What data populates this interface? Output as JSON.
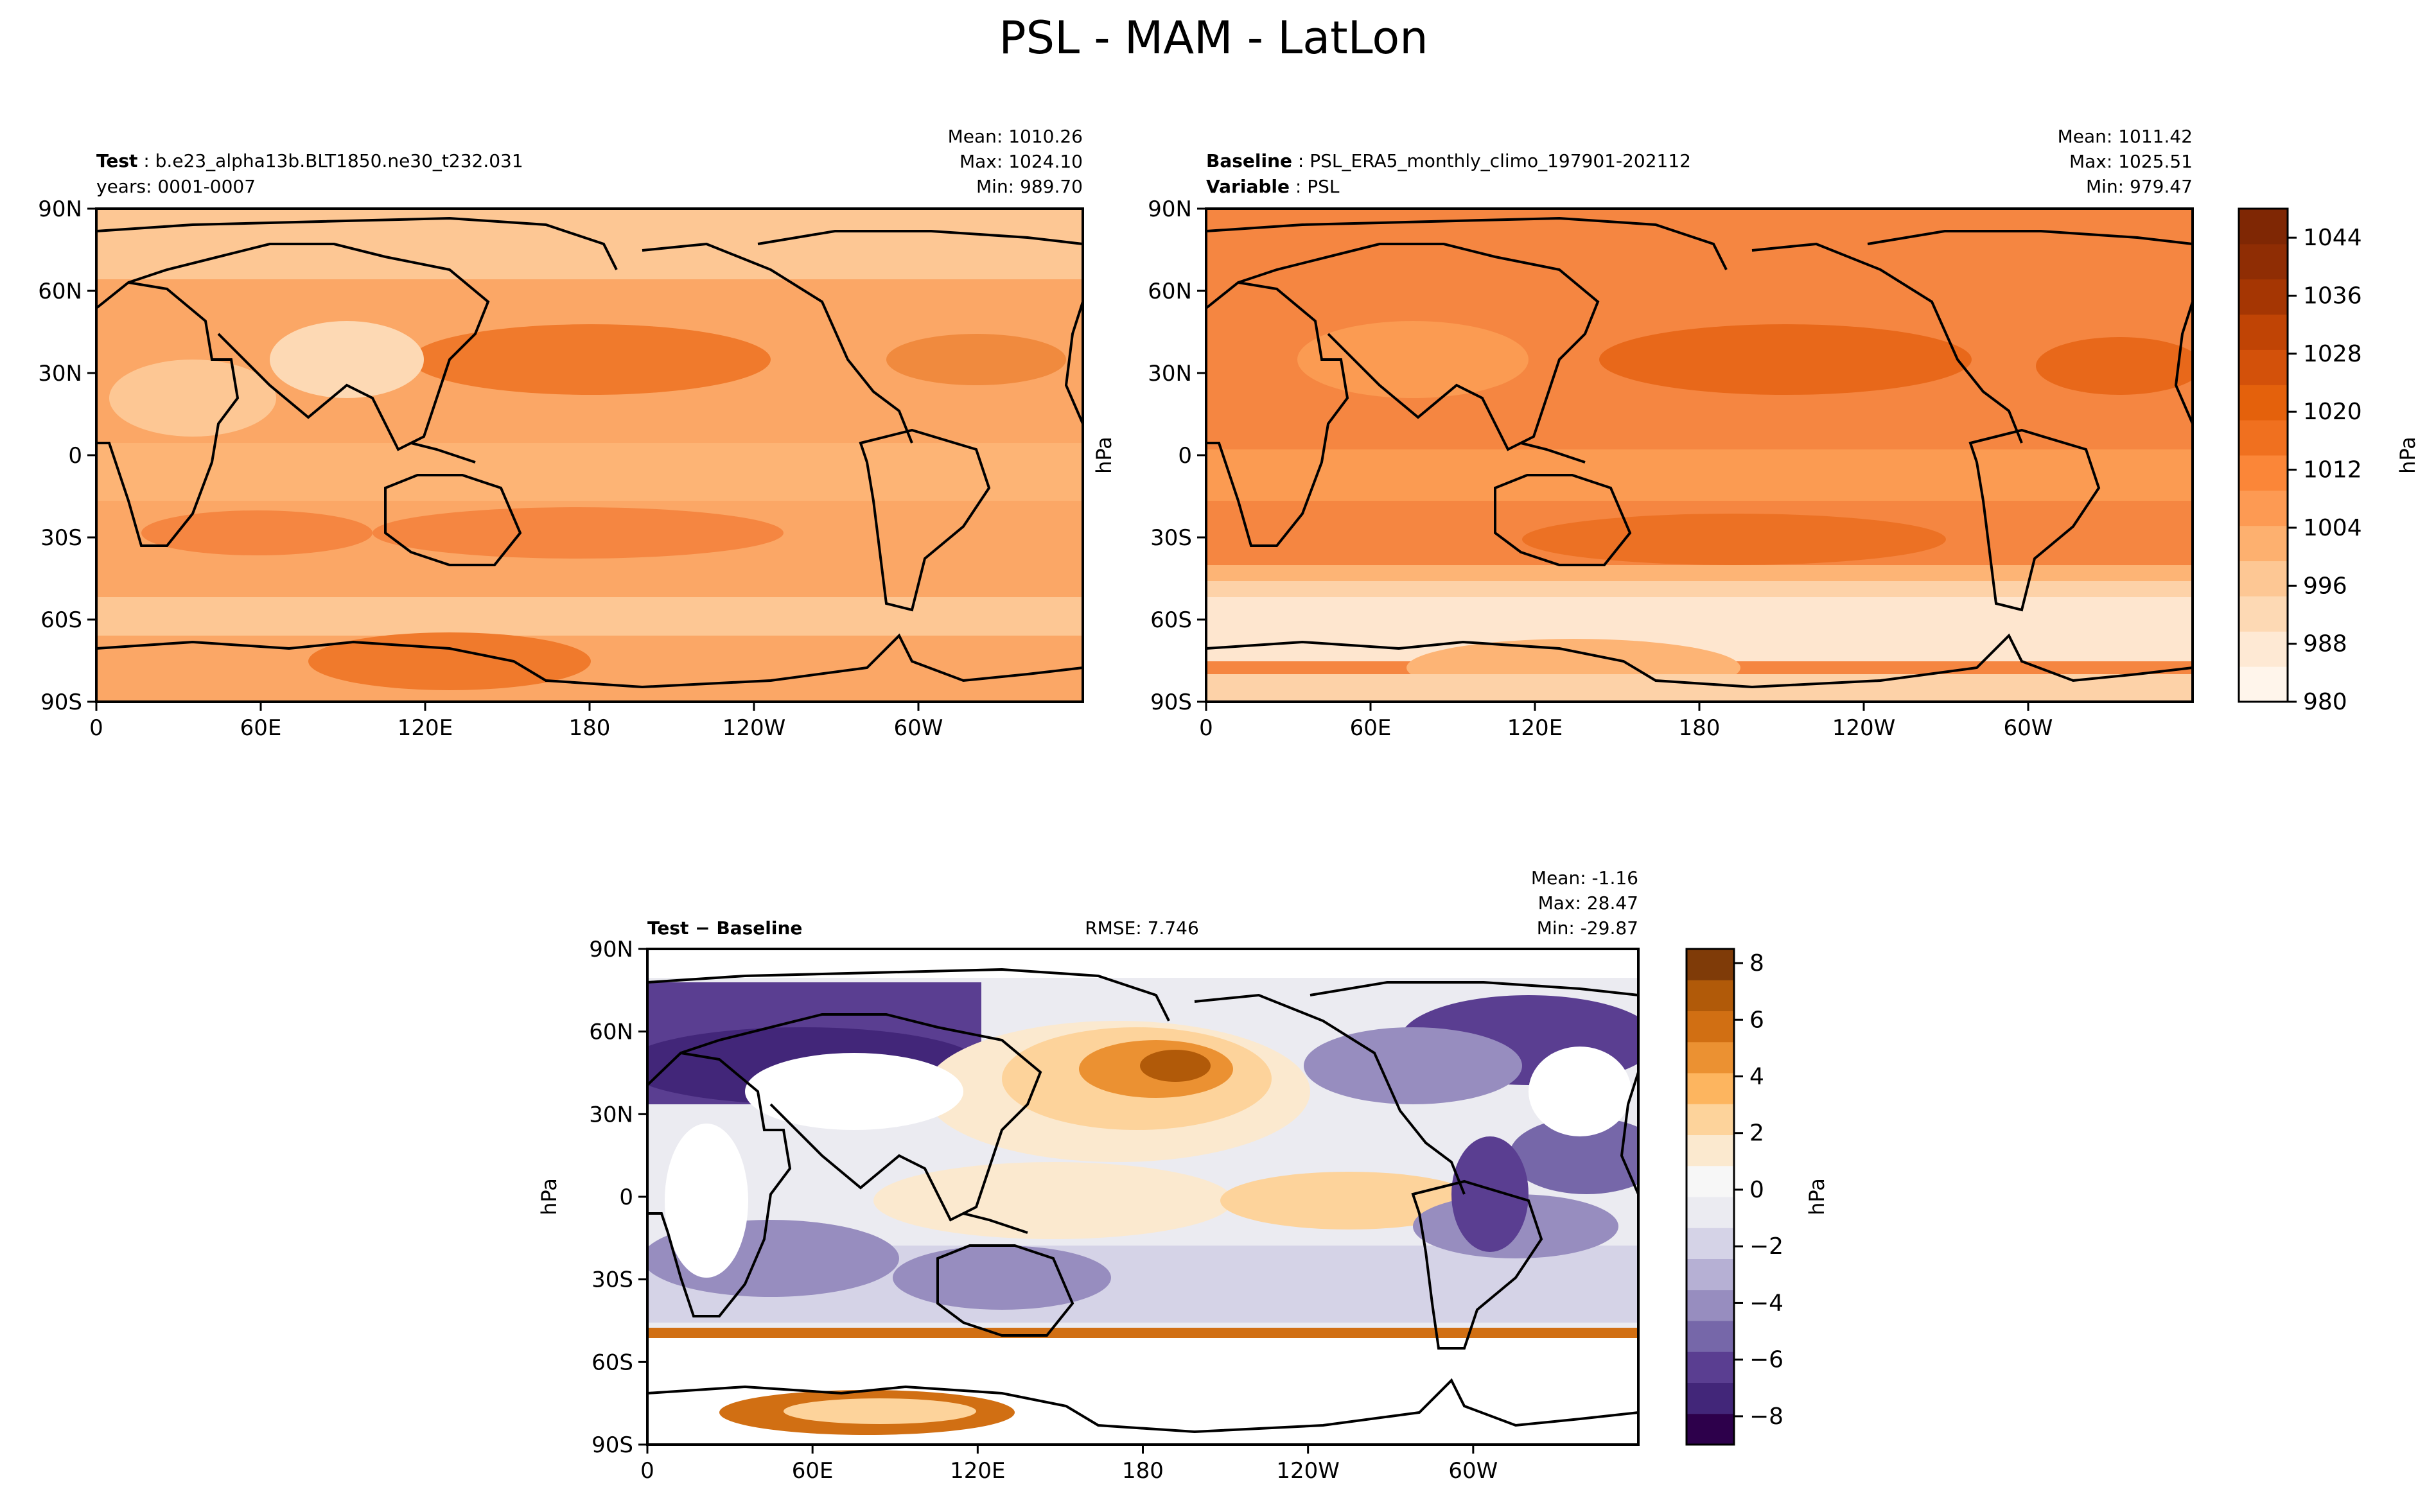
{
  "title": "PSL - MAM - LatLon",
  "chart_data": [
    {
      "type": "heatmap",
      "panel": "test",
      "label_bold": "Test",
      "label_text": "b.e23_alpha13b.BLT1850.ne30_t232.031",
      "label_line2": "years: 0001-0007",
      "stats": {
        "mean": "Mean: 1010.26",
        "max": "Max: 1024.10",
        "min": "Min: 989.70"
      },
      "x_ticks": [
        "0",
        "60E",
        "120E",
        "180",
        "120W",
        "60W"
      ],
      "y_ticks": [
        "90N",
        "60N",
        "30N",
        "0",
        "30S",
        "60S",
        "90S"
      ],
      "xlim": [
        0,
        360
      ],
      "ylim": [
        -90,
        90
      ],
      "colormap": "Oranges",
      "value_range": [
        980,
        1048
      ]
    },
    {
      "type": "heatmap",
      "panel": "baseline",
      "label_bold": "Baseline",
      "label_text": "PSL_ERA5_monthly_climo_197901-202112",
      "label_bold2": "Variable",
      "label_text2": "PSL",
      "stats": {
        "mean": "Mean: 1011.42",
        "max": "Max: 1025.51",
        "min": "Min: 979.47"
      },
      "x_ticks": [
        "0",
        "60E",
        "120E",
        "180",
        "120W",
        "60W"
      ],
      "y_ticks": [
        "90N",
        "60N",
        "30N",
        "0",
        "30S",
        "60S",
        "90S"
      ],
      "ylabel": "hPa",
      "xlim": [
        0,
        360
      ],
      "ylim": [
        -90,
        90
      ],
      "colormap": "Oranges",
      "value_range": [
        980,
        1048
      ]
    },
    {
      "type": "heatmap",
      "panel": "difference",
      "label_bold": "Test − Baseline",
      "rmse": "RMSE: 7.746",
      "stats": {
        "mean": "Mean: -1.16",
        "max": "Max: 28.47",
        "min": "Min: -29.87"
      },
      "x_ticks": [
        "0",
        "60E",
        "120E",
        "180",
        "120W",
        "60W"
      ],
      "y_ticks": [
        "90N",
        "60N",
        "30N",
        "0",
        "30S",
        "60S",
        "90S"
      ],
      "ylabel": "hPa",
      "xlim": [
        0,
        360
      ],
      "ylim": [
        -90,
        90
      ],
      "colormap": "PuOr_r",
      "value_range": [
        -9,
        8.5
      ]
    }
  ],
  "colorbars": {
    "absolute": {
      "label": "hPa",
      "min": 980,
      "max": 1048,
      "ticks": [
        "1044",
        "1036",
        "1028",
        "1020",
        "1012",
        "1004",
        "996",
        "988",
        "980"
      ],
      "tick_values": [
        1044,
        1036,
        1028,
        1020,
        1012,
        1004,
        996,
        988,
        980
      ],
      "colors": [
        "#fff5eb",
        "#fee9d4",
        "#fdd9b4",
        "#fdc794",
        "#fdb06f",
        "#fd9a53",
        "#fb8638",
        "#f0701f",
        "#e4610c",
        "#d3510a",
        "#c04405",
        "#a53603",
        "#8f2d04",
        "#7f2704"
      ]
    },
    "difference": {
      "label": "hPa",
      "min": -9,
      "max": 8.5,
      "ticks": [
        "8",
        "6",
        "4",
        "2",
        "0",
        "−2",
        "−4",
        "−6",
        "−8"
      ],
      "tick_values": [
        8,
        6,
        4,
        2,
        0,
        -2,
        -4,
        -6,
        -8
      ],
      "colors": [
        "#2d004b",
        "#422679",
        "#5a3e91",
        "#7667a9",
        "#978dbf",
        "#b6b0d4",
        "#d5d3e7",
        "#ebebf1",
        "#f7f7f7",
        "#fbe9cf",
        "#fdd39b",
        "#fdb55f",
        "#eb9132",
        "#d16f13",
        "#b15a09",
        "#7f3b08"
      ]
    }
  }
}
